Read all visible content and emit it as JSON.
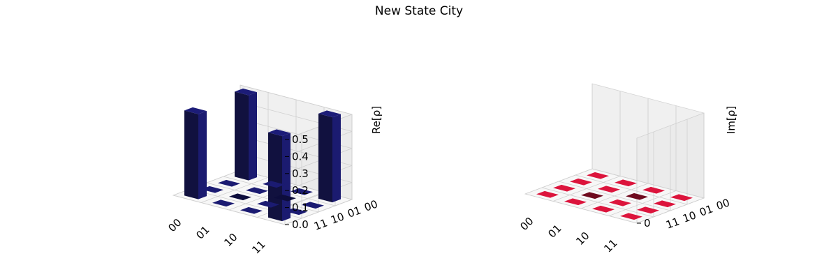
{
  "figure": {
    "title": "New State City"
  },
  "chart_data": [
    {
      "type": "bar3d",
      "name": "real-part",
      "zlabel": "Re[ρ]",
      "row_labels": [
        "00",
        "01",
        "10",
        "11"
      ],
      "col_labels": [
        "00",
        "01",
        "10",
        "11"
      ],
      "zlim": [
        0,
        0.5
      ],
      "zticks": [
        "0.0",
        "0.1",
        "0.2",
        "0.3",
        "0.4",
        "0.5"
      ],
      "values": [
        [
          0.5,
          0,
          0,
          0.5
        ],
        [
          0,
          0,
          0,
          0
        ],
        [
          0,
          0,
          0,
          0
        ],
        [
          0.5,
          0,
          0,
          0.5
        ]
      ],
      "colors": {
        "top": "#1c1c78",
        "front": "#1b1b70",
        "side": "#11113f",
        "flat_light": "#1b1b72",
        "flat_dark": "#0d0d3c"
      }
    },
    {
      "type": "bar3d",
      "name": "imaginary-part",
      "zlabel": "Im[ρ]",
      "row_labels": [
        "00",
        "01",
        "10",
        "11"
      ],
      "col_labels": [
        "00",
        "01",
        "10",
        "11"
      ],
      "zlim": [
        0,
        0
      ],
      "zticks": [
        "0"
      ],
      "values": [
        [
          0,
          0,
          0,
          0
        ],
        [
          0,
          0,
          0,
          0
        ],
        [
          0,
          0,
          0,
          0
        ],
        [
          0,
          0,
          0,
          0
        ]
      ],
      "colors": {
        "flat_light": "#dc143c",
        "flat_dark": "#6e0a1e"
      }
    }
  ]
}
